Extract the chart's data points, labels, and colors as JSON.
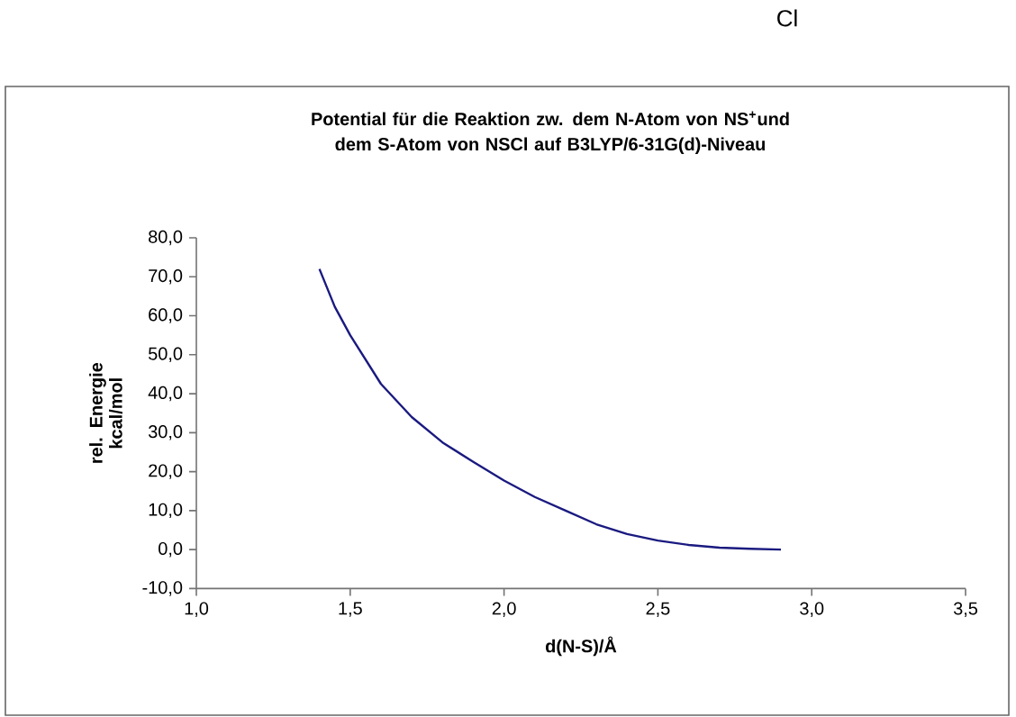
{
  "chart_data": {
    "type": "line",
    "title": "Potential für die Reaktion zw. dem N-Atom von NS$^{+}$und dem S-Atom von NSCl auf B3LYP/6-31G(d)-Niveau",
    "xlabel": "d(N-S)/Å",
    "ylabel": "rel. Energie kcal/mol",
    "annotations": [
      "Cl"
    ],
    "x": [
      1.4,
      1.45,
      1.5,
      1.6,
      1.7,
      1.8,
      1.9,
      2.0,
      2.1,
      2.2,
      2.3,
      2.4,
      2.5,
      2.6,
      2.7,
      2.8,
      2.9
    ],
    "series": [
      {
        "color": "#1a1a80",
        "values": [
          72,
          62.3,
          55,
          42.5,
          34,
          27.5,
          22.5,
          17.7,
          13.5,
          10,
          6.5,
          4,
          2.3,
          1.2,
          0.5,
          0.2,
          0
        ]
      }
    ],
    "xlim": [
      1.0,
      3.5
    ],
    "ylim": [
      -10,
      80
    ],
    "xticks": [
      {
        "value": 1.0,
        "label": "1,0"
      },
      {
        "value": 1.5,
        "label": "1,5"
      },
      {
        "value": 2.0,
        "label": "2,0"
      },
      {
        "value": 2.5,
        "label": "2,5"
      },
      {
        "value": 3.0,
        "label": "3,0"
      },
      {
        "value": 3.5,
        "label": "3,5"
      }
    ],
    "yticks": [
      {
        "value": -10,
        "label": "-10,0"
      },
      {
        "value": 0,
        "label": "0,0"
      },
      {
        "value": 10,
        "label": "10,0"
      },
      {
        "value": 20,
        "label": "20,0"
      },
      {
        "value": 30,
        "label": "30,0"
      },
      {
        "value": 40,
        "label": "40,0"
      },
      {
        "value": 50,
        "label": "50,0"
      },
      {
        "value": 60,
        "label": "60,0"
      },
      {
        "value": 70,
        "label": "70,0"
      },
      {
        "value": 80,
        "label": "80,0"
      }
    ]
  }
}
